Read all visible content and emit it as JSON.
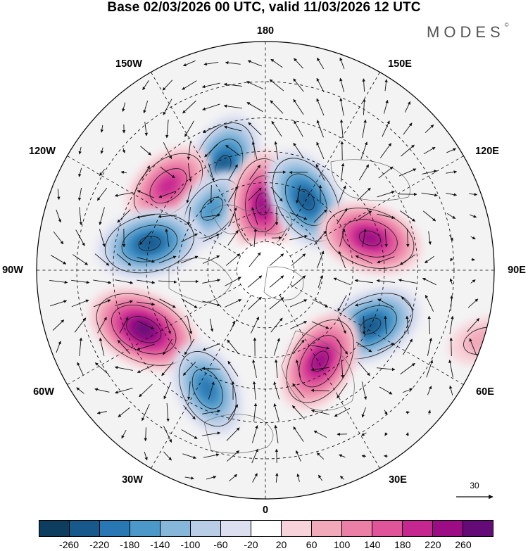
{
  "title": "Base 02/03/2026 00 UTC, valid 11/03/2026 12 UTC",
  "brand": "MODES",
  "brand_mark": "©",
  "longitude_labels": {
    "lon_180": "180",
    "lon_150E": "150E",
    "lon_120E": "120E",
    "lon_90E": "90E",
    "lon_60E": "60E",
    "lon_30E": "30E",
    "lon_0": "0",
    "lon_30W": "30W",
    "lon_60W": "60W",
    "lon_90W": "90W",
    "lon_120W": "120W",
    "lon_150W": "150W"
  },
  "vector_scale": {
    "value": "30"
  },
  "colorbar": {
    "ticks": [
      "-260",
      "-220",
      "-180",
      "-140",
      "-100",
      "-60",
      "-20",
      "20",
      "60",
      "100",
      "140",
      "180",
      "220",
      "260"
    ],
    "colors": [
      "#0d3d5f",
      "#16598a",
      "#2a78b3",
      "#4c98c9",
      "#86b6d9",
      "#b9cde6",
      "#dcdff0",
      "#ffffff",
      "#f8d3d9",
      "#f2aabb",
      "#ec7fa5",
      "#e0549a",
      "#c62690",
      "#9c0d85",
      "#650b78"
    ]
  },
  "chart_data": {
    "type": "map",
    "projection": "north polar stereographic",
    "field": "anomaly (shaded) with wind vectors",
    "features": [
      {
        "sign": "negative",
        "magnitude": 220,
        "lon": -158,
        "lat": 52
      },
      {
        "sign": "positive",
        "magnitude": 180,
        "lon": -131,
        "lat": 47
      },
      {
        "sign": "negative",
        "magnitude": 140,
        "lon": -139,
        "lat": 62
      },
      {
        "sign": "positive",
        "magnitude": 220,
        "lon": -178,
        "lat": 67
      },
      {
        "sign": "negative",
        "magnitude": 220,
        "lon": 150,
        "lat": 62
      },
      {
        "sign": "negative",
        "magnitude": 220,
        "lon": -103,
        "lat": 50
      },
      {
        "sign": "positive",
        "magnitude": 220,
        "lon": 107,
        "lat": 53
      },
      {
        "sign": "positive",
        "magnitude": 260,
        "lon": -64,
        "lat": 45
      },
      {
        "sign": "negative",
        "magnitude": 220,
        "lon": 62,
        "lat": 50
      },
      {
        "sign": "negative",
        "magnitude": 180,
        "lon": -26,
        "lat": 46
      },
      {
        "sign": "positive",
        "magnitude": 220,
        "lon": 31,
        "lat": 54
      },
      {
        "sign": "positive",
        "magnitude": 60,
        "lon": 72,
        "lat": 20
      }
    ]
  }
}
